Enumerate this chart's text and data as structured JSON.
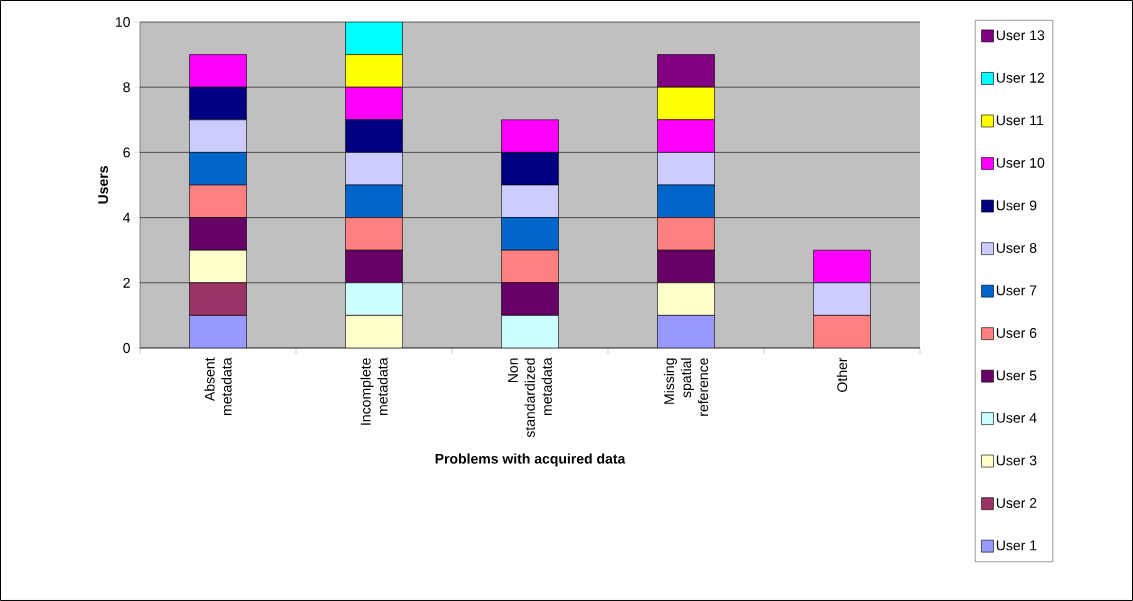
{
  "chart_data": {
    "type": "bar",
    "stacked": true,
    "xlabel": "Problems with acquired data",
    "ylabel": "Users",
    "categories": [
      "Absent metadata",
      "Incomplete metadata",
      "Non standardized metadata",
      "Missing spatial reference",
      "Other"
    ],
    "ylim": [
      0,
      10
    ],
    "yticks": [
      0,
      2,
      4,
      6,
      8,
      10
    ],
    "grid": "y",
    "legend": "right",
    "series": [
      {
        "name": "User 1",
        "color": "#9999ff",
        "values": [
          1,
          0,
          0,
          1,
          0
        ]
      },
      {
        "name": "User 2",
        "color": "#993366",
        "values": [
          1,
          0,
          0,
          0,
          0
        ]
      },
      {
        "name": "User 3",
        "color": "#ffffcc",
        "values": [
          1,
          1,
          0,
          1,
          0
        ]
      },
      {
        "name": "User 4",
        "color": "#ccffff",
        "values": [
          0,
          1,
          1,
          0,
          0
        ]
      },
      {
        "name": "User 5",
        "color": "#660066",
        "values": [
          1,
          1,
          1,
          1,
          0
        ]
      },
      {
        "name": "User 6",
        "color": "#ff8080",
        "values": [
          1,
          1,
          1,
          1,
          1
        ]
      },
      {
        "name": "User 7",
        "color": "#0066cc",
        "values": [
          1,
          1,
          1,
          1,
          0
        ]
      },
      {
        "name": "User 8",
        "color": "#ccccff",
        "values": [
          1,
          1,
          1,
          1,
          1
        ]
      },
      {
        "name": "User 9",
        "color": "#000080",
        "values": [
          1,
          1,
          1,
          0,
          0
        ]
      },
      {
        "name": "User 10",
        "color": "#ff00ff",
        "values": [
          1,
          1,
          1,
          1,
          1
        ]
      },
      {
        "name": "User 11",
        "color": "#ffff00",
        "values": [
          0,
          1,
          0,
          1,
          0
        ]
      },
      {
        "name": "User 12",
        "color": "#00ffff",
        "values": [
          0,
          1,
          0,
          0,
          0
        ]
      },
      {
        "name": "User 13",
        "color": "#800080",
        "values": [
          0,
          0,
          0,
          1,
          0
        ]
      }
    ]
  }
}
